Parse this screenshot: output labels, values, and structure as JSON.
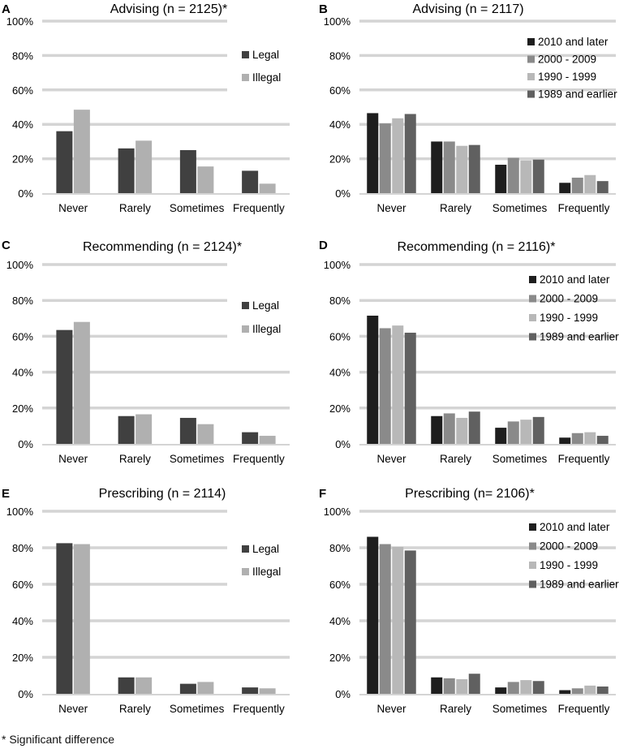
{
  "footnote": "* Significant difference",
  "chart_data": [
    {
      "panel": "A",
      "type": "bar",
      "title": "Advising (n = 2125)*",
      "categories": [
        "Never",
        "Rarely",
        "Sometimes",
        "Frequently"
      ],
      "ylim": [
        0,
        100
      ],
      "yticks": [
        "0%",
        "20%",
        "40%",
        "60%",
        "80%",
        "100%"
      ],
      "legend_position": "right",
      "series": [
        {
          "name": "Legal",
          "color": "#404040",
          "values": [
            36,
            26,
            25,
            13
          ]
        },
        {
          "name": "Illegal",
          "color": "#b0b0b0",
          "values": [
            48.5,
            30.5,
            15.5,
            5.5
          ]
        }
      ]
    },
    {
      "panel": "B",
      "type": "bar",
      "title": "Advising (n = 2117)",
      "categories": [
        "Never",
        "Rarely",
        "Sometimes",
        "Frequently"
      ],
      "ylim": [
        0,
        100
      ],
      "yticks": [
        "0%",
        "20%",
        "40%",
        "60%",
        "80%",
        "100%"
      ],
      "legend_position": "top-right",
      "series": [
        {
          "name": "2010 and later",
          "color": "#1e1e1e",
          "values": [
            46.5,
            30,
            16.5,
            6
          ]
        },
        {
          "name": "2000 - 2009",
          "color": "#8a8a8a",
          "values": [
            40.5,
            30,
            20.5,
            9
          ]
        },
        {
          "name": "1990 - 1999",
          "color": "#b8b8b8",
          "values": [
            43.5,
            27.5,
            19,
            10.5
          ]
        },
        {
          "name": "1989 and earlier",
          "color": "#606060",
          "values": [
            46,
            28,
            19.5,
            7
          ]
        }
      ]
    },
    {
      "panel": "C",
      "type": "bar",
      "title": "Recommending (n = 2124)*",
      "categories": [
        "Never",
        "Rarely",
        "Sometimes",
        "Frequently"
      ],
      "ylim": [
        0,
        100
      ],
      "yticks": [
        "0%",
        "20%",
        "40%",
        "60%",
        "80%",
        "100%"
      ],
      "legend_position": "right",
      "series": [
        {
          "name": "Legal",
          "color": "#404040",
          "values": [
            63.5,
            15.5,
            14.5,
            6.5
          ]
        },
        {
          "name": "Illegal",
          "color": "#b0b0b0",
          "values": [
            68,
            16.5,
            11,
            4.5
          ]
        }
      ]
    },
    {
      "panel": "D",
      "type": "bar",
      "title": "Recommending (n = 2116)*",
      "categories": [
        "Never",
        "Rarely",
        "Sometimes",
        "Frequently"
      ],
      "ylim": [
        0,
        100
      ],
      "yticks": [
        "0%",
        "20%",
        "40%",
        "60%",
        "80%",
        "100%"
      ],
      "legend_position": "top-right",
      "series": [
        {
          "name": "2010 and later",
          "color": "#1e1e1e",
          "values": [
            71.5,
            15.5,
            9,
            3.5
          ]
        },
        {
          "name": "2000 - 2009",
          "color": "#8a8a8a",
          "values": [
            64.5,
            17,
            12.5,
            6
          ]
        },
        {
          "name": "1990 - 1999",
          "color": "#b8b8b8",
          "values": [
            66,
            14.5,
            13.5,
            6.5
          ]
        },
        {
          "name": "1989 and earlier",
          "color": "#606060",
          "values": [
            62,
            18,
            15,
            4.5
          ]
        }
      ]
    },
    {
      "panel": "E",
      "type": "bar",
      "title": "Prescribing (n = 2114)",
      "categories": [
        "Never",
        "Rarely",
        "Sometimes",
        "Frequently"
      ],
      "ylim": [
        0,
        100
      ],
      "yticks": [
        "0%",
        "20%",
        "40%",
        "60%",
        "80%",
        "100%"
      ],
      "legend_position": "right",
      "series": [
        {
          "name": "Legal",
          "color": "#404040",
          "values": [
            82.5,
            9,
            5.5,
            3.5
          ]
        },
        {
          "name": "Illegal",
          "color": "#b0b0b0",
          "values": [
            82,
            9,
            6.5,
            3
          ]
        }
      ]
    },
    {
      "panel": "F",
      "type": "bar",
      "title": "Prescribing (n= 2106)*",
      "categories": [
        "Never",
        "Rarely",
        "Sometimes",
        "Frequently"
      ],
      "ylim": [
        0,
        100
      ],
      "yticks": [
        "0%",
        "20%",
        "40%",
        "60%",
        "80%",
        "100%"
      ],
      "legend_position": "top-right",
      "series": [
        {
          "name": "2010 and later",
          "color": "#1e1e1e",
          "values": [
            86,
            9,
            3.5,
            2
          ]
        },
        {
          "name": "2000 - 2009",
          "color": "#8a8a8a",
          "values": [
            82,
            8.5,
            6.5,
            3
          ]
        },
        {
          "name": "1990 - 1999",
          "color": "#b8b8b8",
          "values": [
            80.5,
            8,
            7.5,
            4.5
          ]
        },
        {
          "name": "1989 and earlier",
          "color": "#606060",
          "values": [
            78.5,
            11,
            7,
            4
          ]
        }
      ]
    }
  ]
}
